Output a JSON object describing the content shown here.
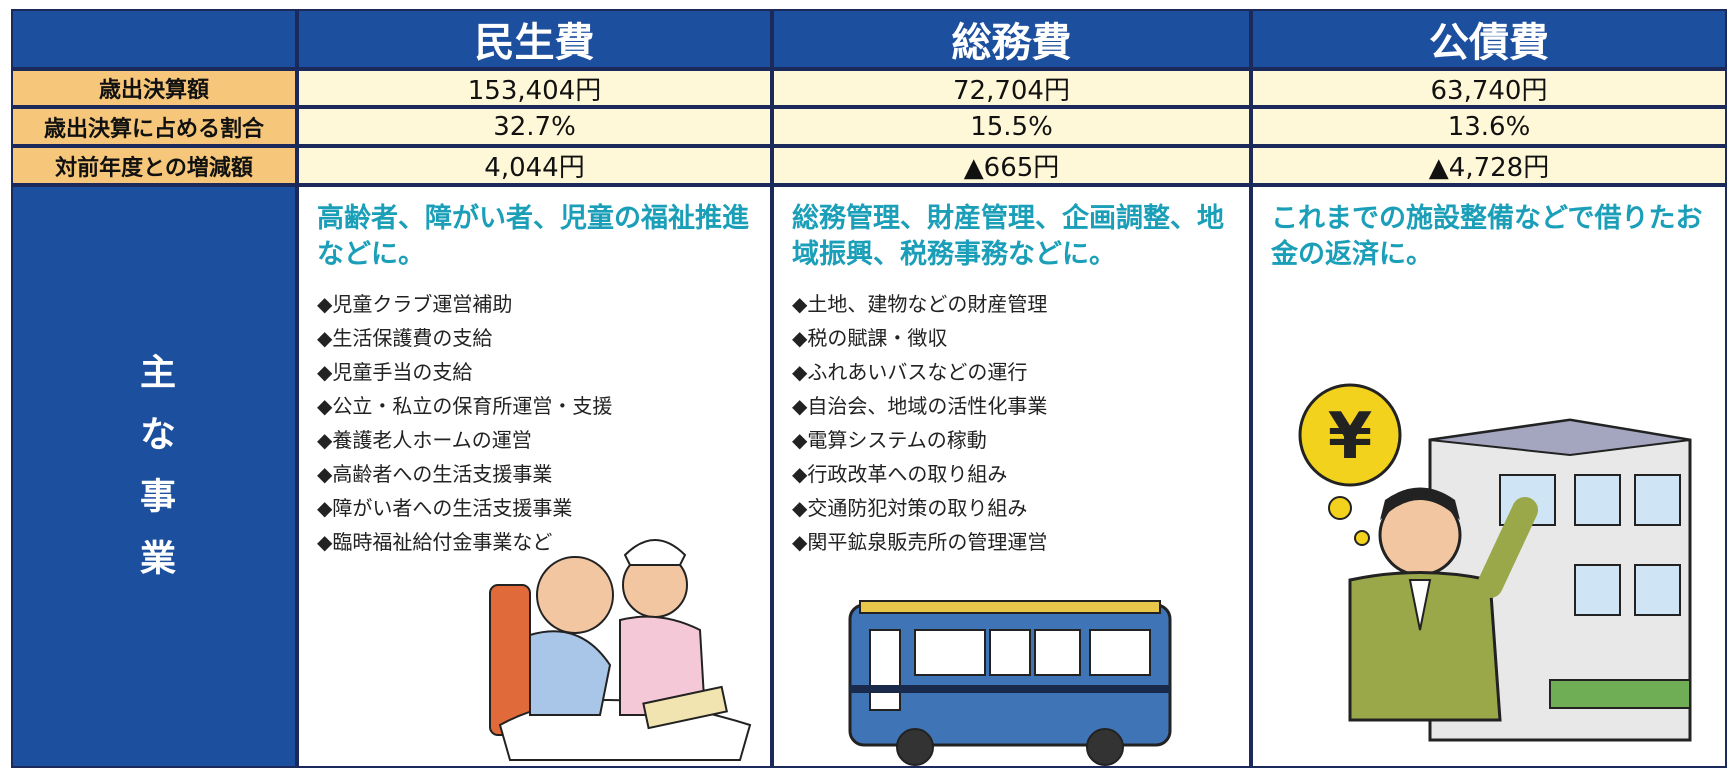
{
  "table": {
    "columns": [
      "民生費",
      "総務費",
      "公債費"
    ],
    "rows": [
      {
        "label": "歳出決算額",
        "cells": [
          "153,404円",
          "72,704円",
          "63,740円"
        ]
      },
      {
        "label": "歳出決算に占める割合",
        "cells": [
          "32.7%",
          "15.5%",
          "13.6%"
        ]
      },
      {
        "label": "対前年度との増減額",
        "cells": [
          "4,044円",
          "▲665円",
          "▲4,728円"
        ]
      }
    ],
    "projects": {
      "label": "主な事業",
      "items": [
        {
          "heading": "高齢者、障がい者、児童の福祉推進などに。",
          "list": [
            "◆児童クラブ運営補助",
            "◆生活保護費の支給",
            "◆児童手当の支給",
            "◆公立・私立の保育所運営・支援",
            "◆養護老人ホームの運営",
            "◆高齢者への生活支援事業",
            "◆障がい者への生活支援事業",
            "◆臨時福祉給付金事業など"
          ]
        },
        {
          "heading": "総務管理、財産管理、企画調整、地域振興、税務事務などに。",
          "list": [
            "◆土地、建物などの財産管理",
            "◆税の賦課・徴収",
            "◆ふれあいバスなどの運行",
            "◆自治会、地域の活性化事業",
            "◆電算システムの稼動",
            "◆行政改革への取り組み",
            "◆交通防犯対策の取り組み",
            "◆関平鉱泉販売所の管理運営"
          ]
        },
        {
          "heading": "これまでの施設整備などで借りたお金の返済に。",
          "list": []
        }
      ]
    }
  }
}
